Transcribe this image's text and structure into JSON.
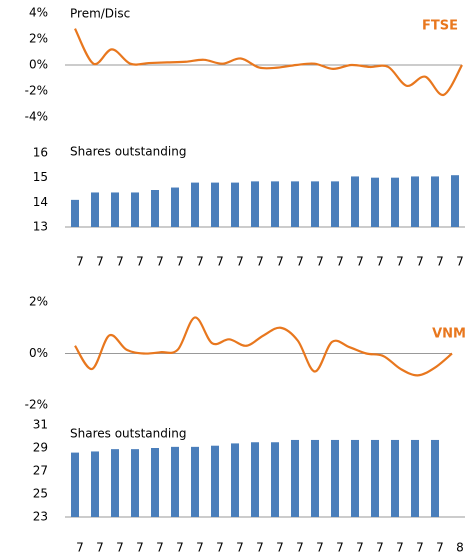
{
  "chart_data": [
    {
      "type": "line",
      "title": "Prem/Disc",
      "annotation": "FTSE",
      "color": "#e8771e",
      "values": [
        2.8,
        0.1,
        1.2,
        0.1,
        0.15,
        0.2,
        0.25,
        0.4,
        0.1,
        0.5,
        -0.2,
        -0.2,
        0,
        0.1,
        -0.3,
        0,
        -0.15,
        -0.15,
        -1.6,
        -0.9,
        -2.3,
        0
      ],
      "ylim": [
        -4,
        4
      ],
      "yticks": [
        {
          "value": 4,
          "label": "4%"
        },
        {
          "value": 2,
          "label": "2%"
        },
        {
          "value": 0,
          "label": "0%"
        },
        {
          "value": -2,
          "label": "-2%"
        },
        {
          "value": -4,
          "label": "-4%"
        }
      ]
    },
    {
      "type": "bar",
      "title": "Shares outstanding",
      "color": "#4a7ebb",
      "categories": [
        "7",
        "7",
        "7",
        "7",
        "7",
        "7",
        "7",
        "7",
        "7",
        "7",
        "7",
        "7",
        "7",
        "7",
        "7",
        "7",
        "7",
        "7",
        "7",
        "7"
      ],
      "values": [
        14.1,
        14.4,
        14.4,
        14.4,
        14.5,
        14.6,
        14.8,
        14.8,
        14.8,
        14.85,
        14.85,
        14.85,
        14.85,
        14.85,
        15.05,
        15.0,
        15.0,
        15.05,
        15.05,
        15.1
      ],
      "ylim": [
        13,
        16
      ],
      "yticks": [
        16,
        15,
        14,
        13
      ]
    },
    {
      "type": "line",
      "annotation": "VNM",
      "color": "#e8771e",
      "values": [
        0.3,
        -0.6,
        0.7,
        0.15,
        0,
        0.05,
        0.15,
        1.4,
        0.4,
        0.55,
        0.3,
        0.7,
        1.0,
        0.5,
        -0.7,
        0.45,
        0.25,
        0,
        -0.1,
        -0.6,
        -0.85,
        -0.55,
        0
      ],
      "ylim": [
        -2,
        2
      ],
      "yticks": [
        {
          "value": 2,
          "label": "2%"
        },
        {
          "value": 0,
          "label": "0%"
        },
        {
          "value": -2,
          "label": "-2%"
        }
      ]
    },
    {
      "type": "bar",
      "title": "Shares outstanding",
      "color": "#4a7ebb",
      "categories": [
        "7",
        "7",
        "7",
        "7",
        "7",
        "7",
        "7",
        "7",
        "7",
        "7",
        "7",
        "7",
        "7",
        "7",
        "7",
        "7",
        "7",
        "7",
        "7",
        "8"
      ],
      "values": [
        28.6,
        28.7,
        28.9,
        28.9,
        29.0,
        29.1,
        29.1,
        29.2,
        29.4,
        29.5,
        29.5,
        29.7,
        29.7,
        29.7,
        29.7,
        29.7,
        29.7,
        29.7,
        29.7,
        null
      ],
      "ylim": [
        23,
        31
      ],
      "yticks": [
        31,
        29,
        27,
        25,
        23
      ]
    }
  ]
}
